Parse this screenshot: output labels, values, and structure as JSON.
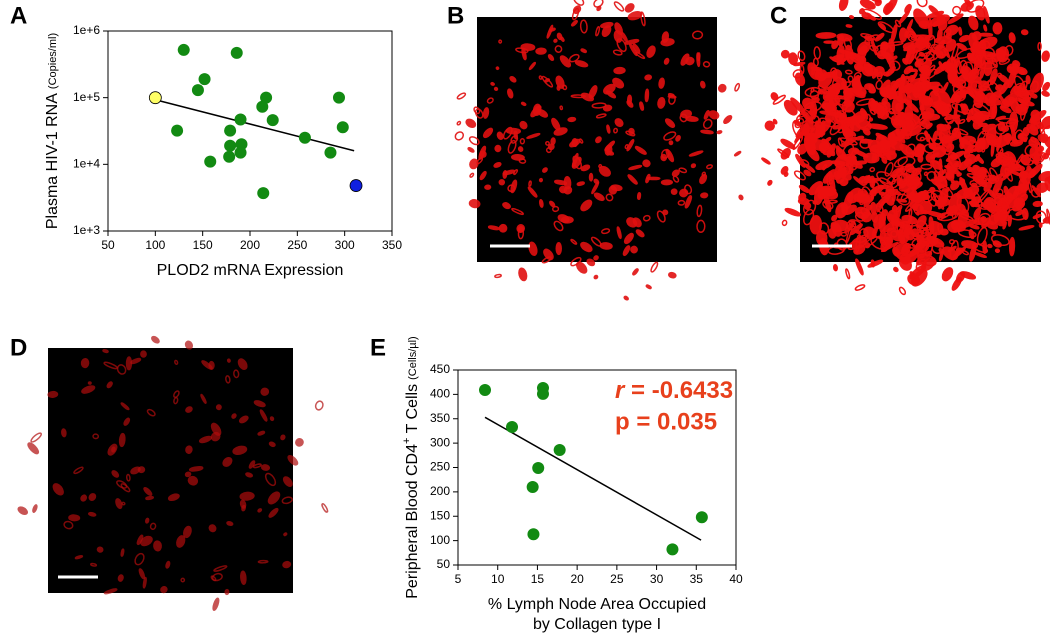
{
  "panel_labels": [
    "A",
    "B",
    "C",
    "D",
    "E"
  ],
  "chart_data": [
    {
      "type": "scatter",
      "log_y": true,
      "x_label": "PLOD2 mRNA Expression",
      "y_label": "Plasma HIV-1 RNA",
      "y_label_unit": "(Copies/ml)",
      "xlim": [
        50,
        350
      ],
      "xticks": [
        50,
        100,
        150,
        200,
        250,
        300,
        350
      ],
      "ylim": [
        1000,
        1000000
      ],
      "yticks": [
        {
          "value": 1000,
          "label": "1e+3"
        },
        {
          "value": 10000,
          "label": "1e+4"
        },
        {
          "value": 100000,
          "label": "1e+5"
        },
        {
          "value": 1000000,
          "label": "1e+6"
        }
      ],
      "series": [
        {
          "color": "#128a12",
          "x": [
            130,
            186,
            152,
            145,
            217,
            213,
            294,
            190,
            224,
            179,
            123,
            298,
            258,
            179,
            191,
            190,
            285,
            178,
            158,
            214
          ],
          "values": [
            520000,
            470000,
            190000,
            130000,
            100000,
            73000,
            100000,
            47000,
            46000,
            32000,
            32000,
            36000,
            25000,
            19000,
            20000,
            15000,
            15000,
            13000,
            11000,
            3700
          ]
        },
        {
          "color": "#ffff66",
          "x": [
            100
          ],
          "values": [
            100000
          ]
        },
        {
          "color": "#1020e0",
          "x": [
            312
          ],
          "values": [
            4800
          ]
        }
      ],
      "trend": {
        "color": "#000000",
        "x": [
          100,
          310
        ],
        "values": [
          93000,
          16000
        ]
      }
    },
    {
      "type": "scatter",
      "x_label": [
        "% Lymph Node Area Occupied",
        "by Collagen type I"
      ],
      "y_label": "Peripheral Blood CD4",
      "y_label_sup": "+",
      "y_label_tail": " T Cells",
      "y_label_unit": "(Cells/µl)",
      "xlim": [
        5,
        40
      ],
      "xticks": [
        5,
        10,
        15,
        20,
        25,
        30,
        35,
        40
      ],
      "ylim": [
        50,
        450
      ],
      "yticks": [
        50,
        100,
        150,
        200,
        250,
        300,
        350,
        400,
        450
      ],
      "series": [
        {
          "color": "#128a12",
          "x": [
            8.4,
            15.7,
            15.7,
            11.8,
            17.8,
            15.1,
            14.4,
            14.5,
            35.7,
            32
          ],
          "values": [
            409,
            413,
            401,
            333,
            286,
            249,
            210,
            113,
            148,
            82
          ]
        }
      ],
      "trend": {
        "color": "#000000",
        "x": [
          8.4,
          35.6
        ],
        "values": [
          353,
          101
        ]
      },
      "annotation_color": "#e8401c",
      "annotations": [
        "r",
        " = -0.6433",
        "p = 0.035"
      ]
    }
  ]
}
